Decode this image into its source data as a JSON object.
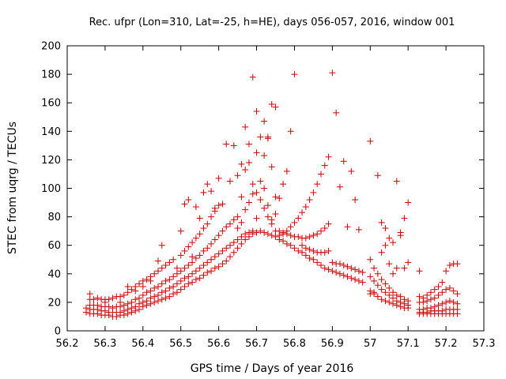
{
  "chart_data": {
    "type": "scatter",
    "title": "Rec. ufpr (Lon=310, Lat=-25, h=HE), days 056-057, 2016, window 001",
    "xlabel": "GPS time / Days of year 2016",
    "ylabel": "STEC from uqrg / TECUs",
    "xlim": [
      56.2,
      57.3
    ],
    "ylim": [
      0,
      200
    ],
    "xticks": [
      56.2,
      56.3,
      56.4,
      56.5,
      56.6,
      56.7,
      56.8,
      56.9,
      57.0,
      57.1,
      57.2,
      57.3
    ],
    "xtick_labels": [
      "56.2",
      "56.3",
      "56.4",
      "56.5",
      "56.6",
      "56.7",
      "56.8",
      "56.9",
      "57",
      "57.1",
      "57.2",
      "57.3"
    ],
    "yticks": [
      0,
      20,
      40,
      60,
      80,
      100,
      120,
      140,
      160,
      180,
      200
    ],
    "ytick_labels": [
      "0",
      "20",
      "40",
      "60",
      "80",
      "100",
      "120",
      "140",
      "160",
      "180",
      "200"
    ],
    "grid": false,
    "marker": "plus",
    "color": "#cc0000",
    "points": [
      [
        56.25,
        13
      ],
      [
        56.26,
        12
      ],
      [
        56.27,
        12
      ],
      [
        56.28,
        12
      ],
      [
        56.29,
        11
      ],
      [
        56.3,
        11
      ],
      [
        56.31,
        11
      ],
      [
        56.32,
        10
      ],
      [
        56.33,
        10
      ],
      [
        56.34,
        11
      ],
      [
        56.35,
        11
      ],
      [
        56.36,
        12
      ],
      [
        56.37,
        13
      ],
      [
        56.38,
        14
      ],
      [
        56.39,
        15
      ],
      [
        56.4,
        17
      ],
      [
        56.41,
        18
      ],
      [
        56.42,
        19
      ],
      [
        56.43,
        20
      ],
      [
        56.44,
        21
      ],
      [
        56.45,
        22
      ],
      [
        56.46,
        23
      ],
      [
        56.47,
        24
      ],
      [
        56.48,
        26
      ],
      [
        56.49,
        27
      ],
      [
        56.5,
        29
      ],
      [
        56.51,
        31
      ],
      [
        56.52,
        33
      ],
      [
        56.53,
        34
      ],
      [
        56.54,
        36
      ],
      [
        56.55,
        37
      ],
      [
        56.56,
        39
      ],
      [
        56.57,
        41
      ],
      [
        56.58,
        42
      ],
      [
        56.59,
        44
      ],
      [
        56.6,
        45
      ],
      [
        56.61,
        47
      ],
      [
        56.62,
        49
      ],
      [
        56.63,
        52
      ],
      [
        56.64,
        55
      ],
      [
        56.65,
        58
      ],
      [
        56.66,
        61
      ],
      [
        56.67,
        64
      ],
      [
        56.68,
        66
      ],
      [
        56.69,
        68
      ],
      [
        56.7,
        69
      ],
      [
        56.71,
        70
      ],
      [
        56.72,
        69
      ],
      [
        56.73,
        68
      ],
      [
        56.74,
        67
      ],
      [
        56.75,
        66
      ],
      [
        56.76,
        64
      ],
      [
        56.77,
        63
      ],
      [
        56.78,
        61
      ],
      [
        56.79,
        60
      ],
      [
        56.8,
        58
      ],
      [
        56.81,
        56
      ],
      [
        56.82,
        55
      ],
      [
        56.83,
        53
      ],
      [
        56.84,
        51
      ],
      [
        56.85,
        50
      ],
      [
        56.86,
        48
      ],
      [
        56.87,
        46
      ],
      [
        56.88,
        44
      ],
      [
        56.89,
        43
      ],
      [
        56.9,
        42
      ],
      [
        56.91,
        41
      ],
      [
        56.92,
        40
      ],
      [
        56.93,
        39
      ],
      [
        56.94,
        38
      ],
      [
        56.95,
        37
      ],
      [
        56.96,
        36
      ],
      [
        56.97,
        35
      ],
      [
        56.98,
        34
      ],
      [
        56.25,
        16
      ],
      [
        56.26,
        15
      ],
      [
        56.27,
        15
      ],
      [
        56.28,
        15
      ],
      [
        56.29,
        14
      ],
      [
        56.3,
        14
      ],
      [
        56.31,
        13
      ],
      [
        56.32,
        13
      ],
      [
        56.33,
        13
      ],
      [
        56.34,
        13
      ],
      [
        56.35,
        14
      ],
      [
        56.36,
        15
      ],
      [
        56.37,
        16
      ],
      [
        56.38,
        17
      ],
      [
        56.39,
        19
      ],
      [
        56.4,
        20
      ],
      [
        56.41,
        21
      ],
      [
        56.42,
        23
      ],
      [
        56.43,
        24
      ],
      [
        56.44,
        25
      ],
      [
        56.45,
        27
      ],
      [
        56.46,
        28
      ],
      [
        56.47,
        30
      ],
      [
        56.48,
        31
      ],
      [
        56.49,
        33
      ],
      [
        56.5,
        35
      ],
      [
        56.51,
        37
      ],
      [
        56.52,
        38
      ],
      [
        56.53,
        40
      ],
      [
        56.54,
        42
      ],
      [
        56.55,
        44
      ],
      [
        56.56,
        46
      ],
      [
        56.57,
        48
      ],
      [
        56.58,
        50
      ],
      [
        56.59,
        52
      ],
      [
        56.6,
        54
      ],
      [
        56.61,
        56
      ],
      [
        56.62,
        58
      ],
      [
        56.63,
        60
      ],
      [
        56.64,
        62
      ],
      [
        56.65,
        64
      ],
      [
        56.66,
        66
      ],
      [
        56.67,
        68
      ],
      [
        56.68,
        69
      ],
      [
        56.69,
        70
      ],
      [
        56.26,
        18
      ],
      [
        56.27,
        18
      ],
      [
        56.28,
        18
      ],
      [
        56.29,
        17
      ],
      [
        56.3,
        17
      ],
      [
        56.31,
        17
      ],
      [
        56.32,
        16
      ],
      [
        56.33,
        17
      ],
      [
        56.34,
        17
      ],
      [
        56.35,
        18
      ],
      [
        56.36,
        19
      ],
      [
        56.37,
        20
      ],
      [
        56.38,
        22
      ],
      [
        56.39,
        23
      ],
      [
        56.4,
        25
      ],
      [
        56.41,
        27
      ],
      [
        56.42,
        28
      ],
      [
        56.43,
        30
      ],
      [
        56.44,
        31
      ],
      [
        56.45,
        33
      ],
      [
        56.46,
        35
      ],
      [
        56.47,
        36
      ],
      [
        56.48,
        38
      ],
      [
        56.49,
        40
      ],
      [
        56.5,
        42
      ],
      [
        56.51,
        44
      ],
      [
        56.52,
        46
      ],
      [
        56.53,
        48
      ],
      [
        56.54,
        51
      ],
      [
        56.55,
        53
      ],
      [
        56.56,
        56
      ],
      [
        56.57,
        58
      ],
      [
        56.58,
        61
      ],
      [
        56.59,
        64
      ],
      [
        56.6,
        67
      ],
      [
        56.61,
        70
      ],
      [
        56.62,
        73
      ],
      [
        56.63,
        75
      ],
      [
        56.64,
        78
      ],
      [
        56.65,
        80
      ],
      [
        56.26,
        22
      ],
      [
        56.27,
        22
      ],
      [
        56.28,
        23
      ],
      [
        56.29,
        22
      ],
      [
        56.3,
        22
      ],
      [
        56.31,
        22
      ],
      [
        56.32,
        23
      ],
      [
        56.33,
        24
      ],
      [
        56.34,
        24
      ],
      [
        56.35,
        25
      ],
      [
        56.36,
        27
      ],
      [
        56.37,
        29
      ],
      [
        56.38,
        31
      ],
      [
        56.39,
        33
      ],
      [
        56.4,
        35
      ],
      [
        56.41,
        36
      ],
      [
        56.42,
        38
      ],
      [
        56.43,
        40
      ],
      [
        56.44,
        42
      ],
      [
        56.45,
        44
      ],
      [
        56.46,
        46
      ],
      [
        56.47,
        48
      ],
      [
        56.48,
        50
      ],
      [
        56.5,
        53
      ],
      [
        56.51,
        56
      ],
      [
        56.52,
        59
      ],
      [
        56.53,
        62
      ],
      [
        56.54,
        65
      ],
      [
        56.55,
        68
      ],
      [
        56.56,
        72
      ],
      [
        56.57,
        75
      ],
      [
        56.58,
        80
      ],
      [
        56.59,
        84
      ],
      [
        56.6,
        88
      ],
      [
        56.26,
        26
      ],
      [
        56.3,
        20
      ],
      [
        56.34,
        20
      ],
      [
        56.36,
        31
      ],
      [
        56.38,
        28
      ],
      [
        56.4,
        31
      ],
      [
        56.42,
        35
      ],
      [
        56.44,
        49
      ],
      [
        56.45,
        60
      ],
      [
        56.49,
        44
      ],
      [
        56.5,
        70
      ],
      [
        56.51,
        89
      ],
      [
        56.52,
        92
      ],
      [
        56.53,
        52
      ],
      [
        56.54,
        87
      ],
      [
        56.55,
        79
      ],
      [
        56.56,
        97
      ],
      [
        56.57,
        103
      ],
      [
        56.58,
        98
      ],
      [
        56.59,
        86
      ],
      [
        56.6,
        107
      ],
      [
        56.61,
        89
      ],
      [
        56.62,
        131
      ],
      [
        56.63,
        105
      ],
      [
        56.64,
        130
      ],
      [
        56.65,
        109
      ],
      [
        56.66,
        117
      ],
      [
        56.67,
        143
      ],
      [
        56.68,
        131
      ],
      [
        56.69,
        178
      ],
      [
        56.7,
        154
      ],
      [
        56.71,
        136
      ],
      [
        56.72,
        147
      ],
      [
        56.73,
        136
      ],
      [
        56.74,
        159
      ],
      [
        56.75,
        157
      ],
      [
        56.66,
        94
      ],
      [
        56.67,
        113
      ],
      [
        56.68,
        118
      ],
      [
        56.69,
        103
      ],
      [
        56.7,
        125
      ],
      [
        56.71,
        105
      ],
      [
        56.72,
        123
      ],
      [
        56.73,
        135
      ],
      [
        56.74,
        115
      ],
      [
        56.75,
        94
      ],
      [
        56.65,
        72
      ],
      [
        56.66,
        76
      ],
      [
        56.67,
        85
      ],
      [
        56.68,
        90
      ],
      [
        56.69,
        96
      ],
      [
        56.7,
        79
      ],
      [
        56.72,
        100
      ],
      [
        56.73,
        88
      ],
      [
        56.74,
        78
      ],
      [
        56.75,
        82
      ],
      [
        56.76,
        93
      ],
      [
        56.77,
        103
      ],
      [
        56.78,
        112
      ],
      [
        56.79,
        140
      ],
      [
        56.8,
        180
      ],
      [
        56.7,
        97
      ],
      [
        56.71,
        92
      ],
      [
        56.72,
        86
      ],
      [
        56.73,
        80
      ],
      [
        56.74,
        75
      ],
      [
        56.75,
        70
      ],
      [
        56.76,
        67
      ],
      [
        56.77,
        68
      ],
      [
        56.78,
        70
      ],
      [
        56.79,
        73
      ],
      [
        56.8,
        76
      ],
      [
        56.81,
        79
      ],
      [
        56.82,
        83
      ],
      [
        56.83,
        87
      ],
      [
        56.84,
        92
      ],
      [
        56.85,
        97
      ],
      [
        56.86,
        103
      ],
      [
        56.87,
        110
      ],
      [
        56.88,
        116
      ],
      [
        56.89,
        122
      ],
      [
        56.76,
        70
      ],
      [
        56.77,
        69
      ],
      [
        56.78,
        68
      ],
      [
        56.79,
        67
      ],
      [
        56.8,
        66
      ],
      [
        56.81,
        66
      ],
      [
        56.82,
        65
      ],
      [
        56.83,
        65
      ],
      [
        56.84,
        66
      ],
      [
        56.85,
        67
      ],
      [
        56.86,
        68
      ],
      [
        56.87,
        70
      ],
      [
        56.88,
        72
      ],
      [
        56.89,
        75
      ],
      [
        56.82,
        60
      ],
      [
        56.83,
        58
      ],
      [
        56.84,
        57
      ],
      [
        56.85,
        56
      ],
      [
        56.86,
        55
      ],
      [
        56.87,
        55
      ],
      [
        56.88,
        55
      ],
      [
        56.89,
        56
      ],
      [
        56.9,
        181
      ],
      [
        56.91,
        153
      ],
      [
        56.92,
        101
      ],
      [
        56.93,
        119
      ],
      [
        56.94,
        73
      ],
      [
        56.95,
        112
      ],
      [
        56.96,
        92
      ],
      [
        56.97,
        71
      ],
      [
        56.9,
        48
      ],
      [
        56.91,
        47
      ],
      [
        56.92,
        47
      ],
      [
        56.93,
        46
      ],
      [
        56.94,
        45
      ],
      [
        56.95,
        44
      ],
      [
        56.96,
        43
      ],
      [
        56.97,
        42
      ],
      [
        56.98,
        41
      ],
      [
        57.0,
        133
      ],
      [
        57.02,
        109
      ],
      [
        57.03,
        76
      ],
      [
        57.04,
        72
      ],
      [
        57.05,
        65
      ],
      [
        57.06,
        62
      ],
      [
        57.07,
        105
      ],
      [
        57.08,
        69
      ],
      [
        57.09,
        79
      ],
      [
        57.1,
        90
      ],
      [
        57.0,
        50
      ],
      [
        57.01,
        44
      ],
      [
        57.02,
        40
      ],
      [
        57.03,
        36
      ],
      [
        57.04,
        33
      ],
      [
        57.05,
        30
      ],
      [
        57.06,
        27
      ],
      [
        57.07,
        25
      ],
      [
        57.08,
        24
      ],
      [
        57.09,
        22
      ],
      [
        57.1,
        21
      ],
      [
        57.0,
        38
      ],
      [
        57.01,
        35
      ],
      [
        57.02,
        32
      ],
      [
        57.03,
        29
      ],
      [
        57.04,
        27
      ],
      [
        57.05,
        25
      ],
      [
        57.06,
        23
      ],
      [
        57.07,
        21
      ],
      [
        57.08,
        20
      ],
      [
        57.09,
        19
      ],
      [
        57.1,
        18
      ],
      [
        57.0,
        28
      ],
      [
        57.01,
        26
      ],
      [
        57.02,
        24
      ],
      [
        57.03,
        22
      ],
      [
        57.04,
        21
      ],
      [
        57.05,
        20
      ],
      [
        57.06,
        19
      ],
      [
        57.07,
        18
      ],
      [
        57.08,
        17
      ],
      [
        57.09,
        16
      ],
      [
        57.1,
        16
      ],
      [
        57.0,
        26
      ],
      [
        57.01,
        27
      ],
      [
        57.03,
        55
      ],
      [
        57.04,
        60
      ],
      [
        57.05,
        47
      ],
      [
        57.06,
        40
      ],
      [
        57.07,
        44
      ],
      [
        57.08,
        67
      ],
      [
        57.09,
        44
      ],
      [
        57.1,
        48
      ],
      [
        57.13,
        42
      ],
      [
        57.13,
        24
      ],
      [
        57.14,
        23
      ],
      [
        57.15,
        25
      ],
      [
        57.16,
        27
      ],
      [
        57.17,
        29
      ],
      [
        57.18,
        31
      ],
      [
        57.19,
        34
      ],
      [
        57.2,
        42
      ],
      [
        57.21,
        46
      ],
      [
        57.22,
        47
      ],
      [
        57.23,
        47
      ],
      [
        57.13,
        20
      ],
      [
        57.14,
        20
      ],
      [
        57.15,
        21
      ],
      [
        57.16,
        22
      ],
      [
        57.17,
        23
      ],
      [
        57.18,
        25
      ],
      [
        57.19,
        27
      ],
      [
        57.2,
        29
      ],
      [
        57.21,
        30
      ],
      [
        57.22,
        28
      ],
      [
        57.23,
        26
      ],
      [
        57.13,
        15
      ],
      [
        57.14,
        15
      ],
      [
        57.15,
        16
      ],
      [
        57.16,
        16
      ],
      [
        57.17,
        17
      ],
      [
        57.18,
        18
      ],
      [
        57.19,
        19
      ],
      [
        57.2,
        20
      ],
      [
        57.21,
        21
      ],
      [
        57.22,
        20
      ],
      [
        57.23,
        19
      ],
      [
        57.13,
        13
      ],
      [
        57.14,
        13
      ],
      [
        57.15,
        13
      ],
      [
        57.16,
        14
      ],
      [
        57.17,
        14
      ],
      [
        57.18,
        14
      ],
      [
        57.19,
        14
      ],
      [
        57.2,
        15
      ],
      [
        57.21,
        15
      ],
      [
        57.22,
        15
      ],
      [
        57.23,
        15
      ],
      [
        57.13,
        12
      ],
      [
        57.14,
        12
      ],
      [
        57.15,
        12
      ],
      [
        57.16,
        12
      ],
      [
        57.17,
        12
      ],
      [
        57.18,
        12
      ],
      [
        57.19,
        12
      ],
      [
        57.2,
        12
      ],
      [
        57.21,
        12
      ],
      [
        57.22,
        12
      ],
      [
        57.23,
        12
      ]
    ]
  }
}
